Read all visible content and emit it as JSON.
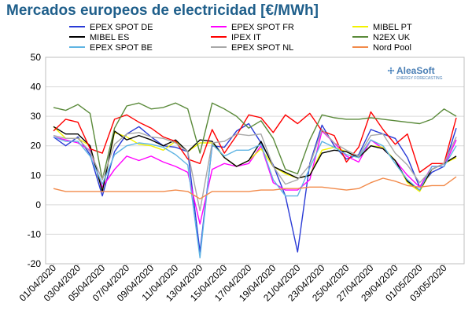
{
  "chart_data": {
    "type": "line",
    "title": "Mercados europeos de electricidad [€/MWh]",
    "xlabel": "",
    "ylabel": "",
    "ylim": [
      -20,
      50
    ],
    "yticks": [
      -20,
      -10,
      0,
      10,
      20,
      30,
      40,
      50
    ],
    "grid": true,
    "legend": "top",
    "x": [
      "01/04/2020",
      "02/04/2020",
      "03/04/2020",
      "04/04/2020",
      "05/04/2020",
      "06/04/2020",
      "07/04/2020",
      "08/04/2020",
      "09/04/2020",
      "10/04/2020",
      "11/04/2020",
      "12/04/2020",
      "13/04/2020",
      "14/04/2020",
      "15/04/2020",
      "16/04/2020",
      "17/04/2020",
      "18/04/2020",
      "19/04/2020",
      "20/04/2020",
      "21/04/2020",
      "22/04/2020",
      "23/04/2020",
      "24/04/2020",
      "25/04/2020",
      "26/04/2020",
      "27/04/2020",
      "28/04/2020",
      "29/04/2020",
      "30/04/2020",
      "01/05/2020",
      "02/05/2020",
      "03/05/2020",
      "04/05/2020"
    ],
    "xtick_labels": [
      "01/04/2020",
      "03/04/2020",
      "05/04/2020",
      "07/04/2020",
      "09/04/2020",
      "11/04/2020",
      "13/04/2020",
      "15/04/2020",
      "17/04/2020",
      "19/04/2020",
      "21/04/2020",
      "23/04/2020",
      "25/04/2020",
      "27/04/2020",
      "29/04/2020",
      "01/05/2020",
      "03/05/2020"
    ],
    "series": [
      {
        "name": "EPEX SPOT DE",
        "color": "#2a3bd6",
        "values": [
          23,
          20,
          23,
          17,
          3,
          18,
          24,
          26.5,
          23,
          20,
          19.5,
          18,
          -16,
          20,
          19.5,
          25,
          27.5,
          21,
          13.5,
          3,
          -16,
          14,
          27,
          20,
          15.5,
          17,
          25.5,
          24,
          22.5,
          16,
          6,
          11,
          13,
          26
        ]
      },
      {
        "name": "EPEX SPOT FR",
        "color": "#ff00ff",
        "values": [
          23,
          22,
          21,
          18.5,
          6,
          12,
          16.5,
          15,
          16.5,
          14.5,
          13,
          11,
          -6.5,
          12,
          14,
          13,
          14,
          20,
          7.5,
          5,
          5,
          8.5,
          25,
          21,
          16.5,
          14.5,
          22,
          19,
          15,
          10,
          6,
          13,
          13,
          22
        ]
      },
      {
        "name": "MIBEL PT",
        "color": "#f2f200",
        "values": [
          26.5,
          22.5,
          22.5,
          20,
          4.5,
          24.5,
          23,
          20.5,
          20,
          18.5,
          21.5,
          18,
          21,
          21,
          16,
          13,
          15,
          19,
          13,
          10.5,
          9,
          10,
          18.5,
          19.5,
          18,
          16,
          20,
          19.5,
          15,
          7.5,
          4.5,
          12,
          14,
          16
        ]
      },
      {
        "name": "MIBEL ES",
        "color": "#000000",
        "values": [
          26.5,
          24,
          24,
          20,
          4.5,
          25,
          22,
          23.5,
          22,
          20,
          22,
          18,
          22,
          21.5,
          16,
          13,
          15,
          21.5,
          13,
          11,
          9,
          10,
          17.5,
          18.5,
          18,
          16,
          20,
          19,
          15,
          8,
          5,
          12,
          14,
          16.5
        ]
      },
      {
        "name": "IPEX IT",
        "color": "#ff0000",
        "values": [
          25,
          29,
          28,
          19,
          17.5,
          29,
          30.5,
          28,
          26,
          23,
          21.5,
          15.5,
          14,
          25.5,
          17.5,
          23.5,
          30.5,
          29.5,
          24.5,
          30.5,
          27.5,
          31,
          25,
          23.5,
          14.5,
          19.5,
          31.5,
          25.5,
          20.5,
          24,
          11,
          14,
          14,
          29.5
        ]
      },
      {
        "name": "N2EX UK",
        "color": "#5a8a3a",
        "values": [
          33,
          32,
          34,
          31,
          8.5,
          26,
          33.5,
          34.5,
          32.5,
          33,
          34.5,
          32.5,
          17.5,
          34.5,
          32.5,
          30,
          26,
          28.5,
          22.5,
          12,
          10.5,
          22,
          30.5,
          29.5,
          29,
          29,
          29.5,
          29,
          28.5,
          28,
          27.5,
          29,
          32.5,
          30
        ]
      },
      {
        "name": "EPEX SPOT BE",
        "color": "#5fb4e3",
        "values": [
          23,
          21.5,
          21.5,
          16.5,
          7,
          17,
          20,
          21,
          20.5,
          19.5,
          17,
          13.5,
          -18,
          20.5,
          16.5,
          18.5,
          18.5,
          20.5,
          8.5,
          3,
          3,
          12.5,
          21.5,
          19.5,
          17,
          16,
          22,
          20,
          14,
          8.5,
          5,
          13,
          13,
          20
        ]
      },
      {
        "name": "EPEX SPOT NL",
        "color": "#a8a8a8",
        "values": [
          23.5,
          22.5,
          22.5,
          18,
          8.5,
          20.5,
          24,
          24.5,
          23,
          22.5,
          21,
          18,
          -2,
          21,
          21.5,
          24,
          23.5,
          24,
          13,
          7,
          8.5,
          13.5,
          25.5,
          21,
          18.5,
          16.5,
          23.5,
          24,
          17.5,
          13.5,
          7.5,
          12,
          14,
          23
        ]
      },
      {
        "name": "Nord Pool",
        "color": "#f28a4a",
        "values": [
          5.5,
          4.5,
          4.5,
          4.5,
          4.5,
          4.5,
          4.5,
          4.5,
          4.5,
          4.5,
          5,
          4.5,
          2,
          4.5,
          4.5,
          4.5,
          4.5,
          5,
          5,
          5.5,
          5.5,
          6,
          6,
          5.5,
          5,
          5.5,
          7.5,
          9,
          8,
          6.5,
          6,
          6.5,
          6.5,
          9.5
        ]
      }
    ]
  },
  "brand": {
    "name": "AleaSoft",
    "tagline": "ENERGY FORECASTING",
    "icon": "sparkle-dots-icon"
  }
}
